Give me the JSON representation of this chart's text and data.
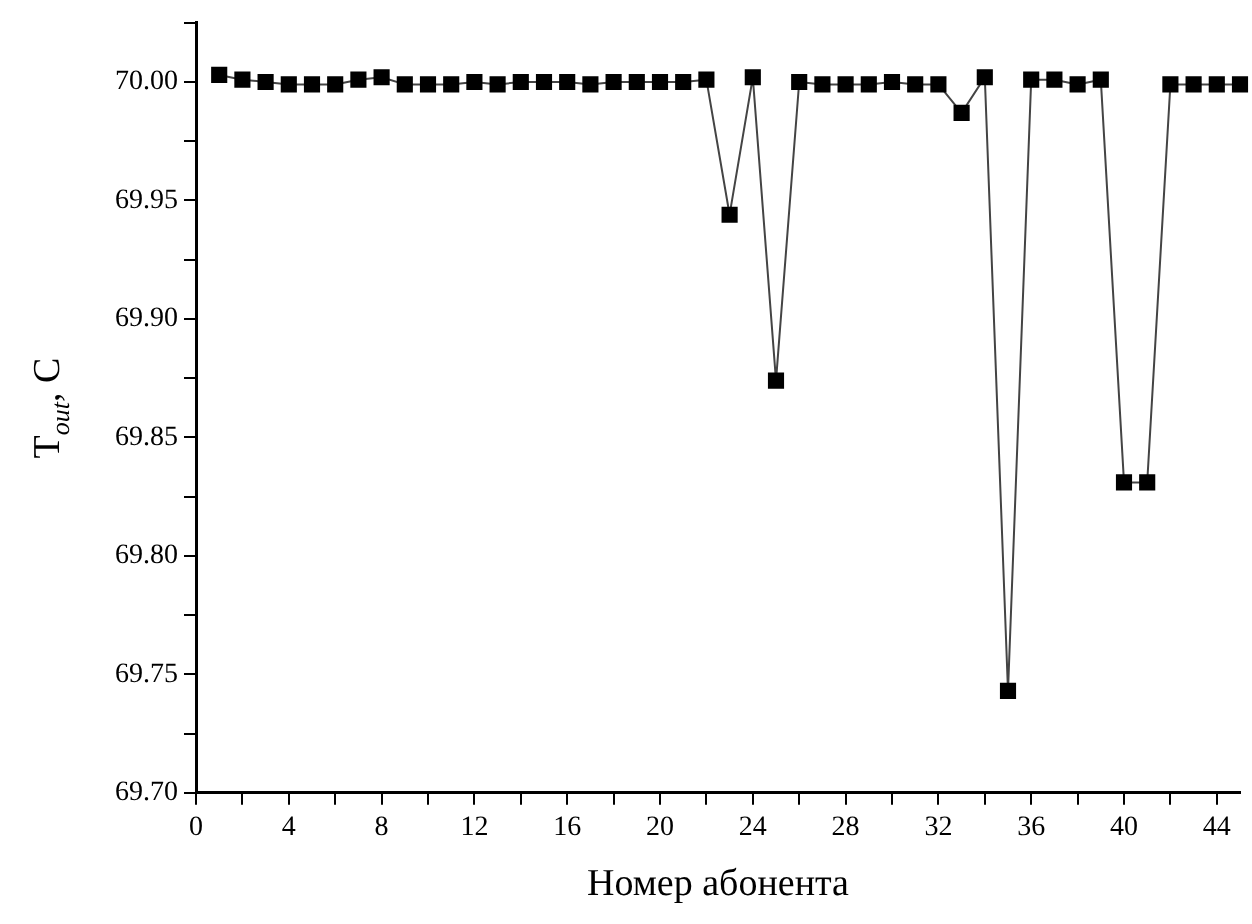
{
  "chart_data": {
    "type": "line",
    "xlabel": "Номер абонента",
    "ylabel": "T$_{out}$, C",
    "x": [
      1,
      2,
      3,
      4,
      5,
      6,
      7,
      8,
      9,
      10,
      11,
      12,
      13,
      14,
      15,
      16,
      17,
      18,
      19,
      20,
      21,
      22,
      23,
      24,
      25,
      26,
      27,
      28,
      29,
      30,
      31,
      32,
      33,
      34,
      35,
      36,
      37,
      38,
      39,
      40,
      41,
      42,
      43,
      44,
      45
    ],
    "series": [
      {
        "color": "#000000",
        "values": [
          70.003,
          70.001,
          70.0,
          69.999,
          69.999,
          69.999,
          70.001,
          70.002,
          69.999,
          69.999,
          69.999,
          70.0,
          69.999,
          70.0,
          70.0,
          70.0,
          69.999,
          70.0,
          70.0,
          70.0,
          70.0,
          70.001,
          69.944,
          70.002,
          69.874,
          70.0,
          69.999,
          69.999,
          69.999,
          70.0,
          69.999,
          69.999,
          69.987,
          70.002,
          69.743,
          70.001,
          70.001,
          69.999,
          70.001,
          69.831,
          69.831,
          69.999,
          69.999,
          69.999,
          69.999
        ]
      }
    ],
    "xlim": [
      0,
      45
    ],
    "xticks": [
      0,
      {
        "value": 2,
        "label": null
      },
      4,
      {
        "value": 6,
        "label": null
      },
      8,
      {
        "value": 10,
        "label": null
      },
      12,
      {
        "value": 14,
        "label": null
      },
      16,
      {
        "value": 18,
        "label": null
      },
      20,
      {
        "value": 22,
        "label": null
      },
      24,
      {
        "value": 26,
        "label": null
      },
      28,
      {
        "value": 30,
        "label": null
      },
      32,
      {
        "value": 34,
        "label": null
      },
      36,
      {
        "value": 38,
        "label": null
      },
      40,
      {
        "value": 42,
        "label": null
      },
      44
    ],
    "ylim": [
      69.7,
      70.025
    ],
    "yticks": [
      {
        "value": 69.7,
        "label": "69.70"
      },
      {
        "value": 69.725,
        "label": null
      },
      {
        "value": 69.75,
        "label": "69.75"
      },
      {
        "value": 69.775,
        "label": null
      },
      {
        "value": 69.8,
        "label": "69.80"
      },
      {
        "value": 69.825,
        "label": null
      },
      {
        "value": 69.85,
        "label": "69.85"
      },
      {
        "value": 69.875,
        "label": null
      },
      {
        "value": 69.9,
        "label": "69.90"
      },
      {
        "value": 69.925,
        "label": null
      },
      {
        "value": 69.95,
        "label": "69.95"
      },
      {
        "value": 69.975,
        "label": null
      },
      {
        "value": 70.0,
        "label": "70.00"
      },
      {
        "value": 70.025,
        "label": null
      }
    ],
    "marker": "square",
    "line_style": "solid",
    "grid": false,
    "legend": false
  }
}
